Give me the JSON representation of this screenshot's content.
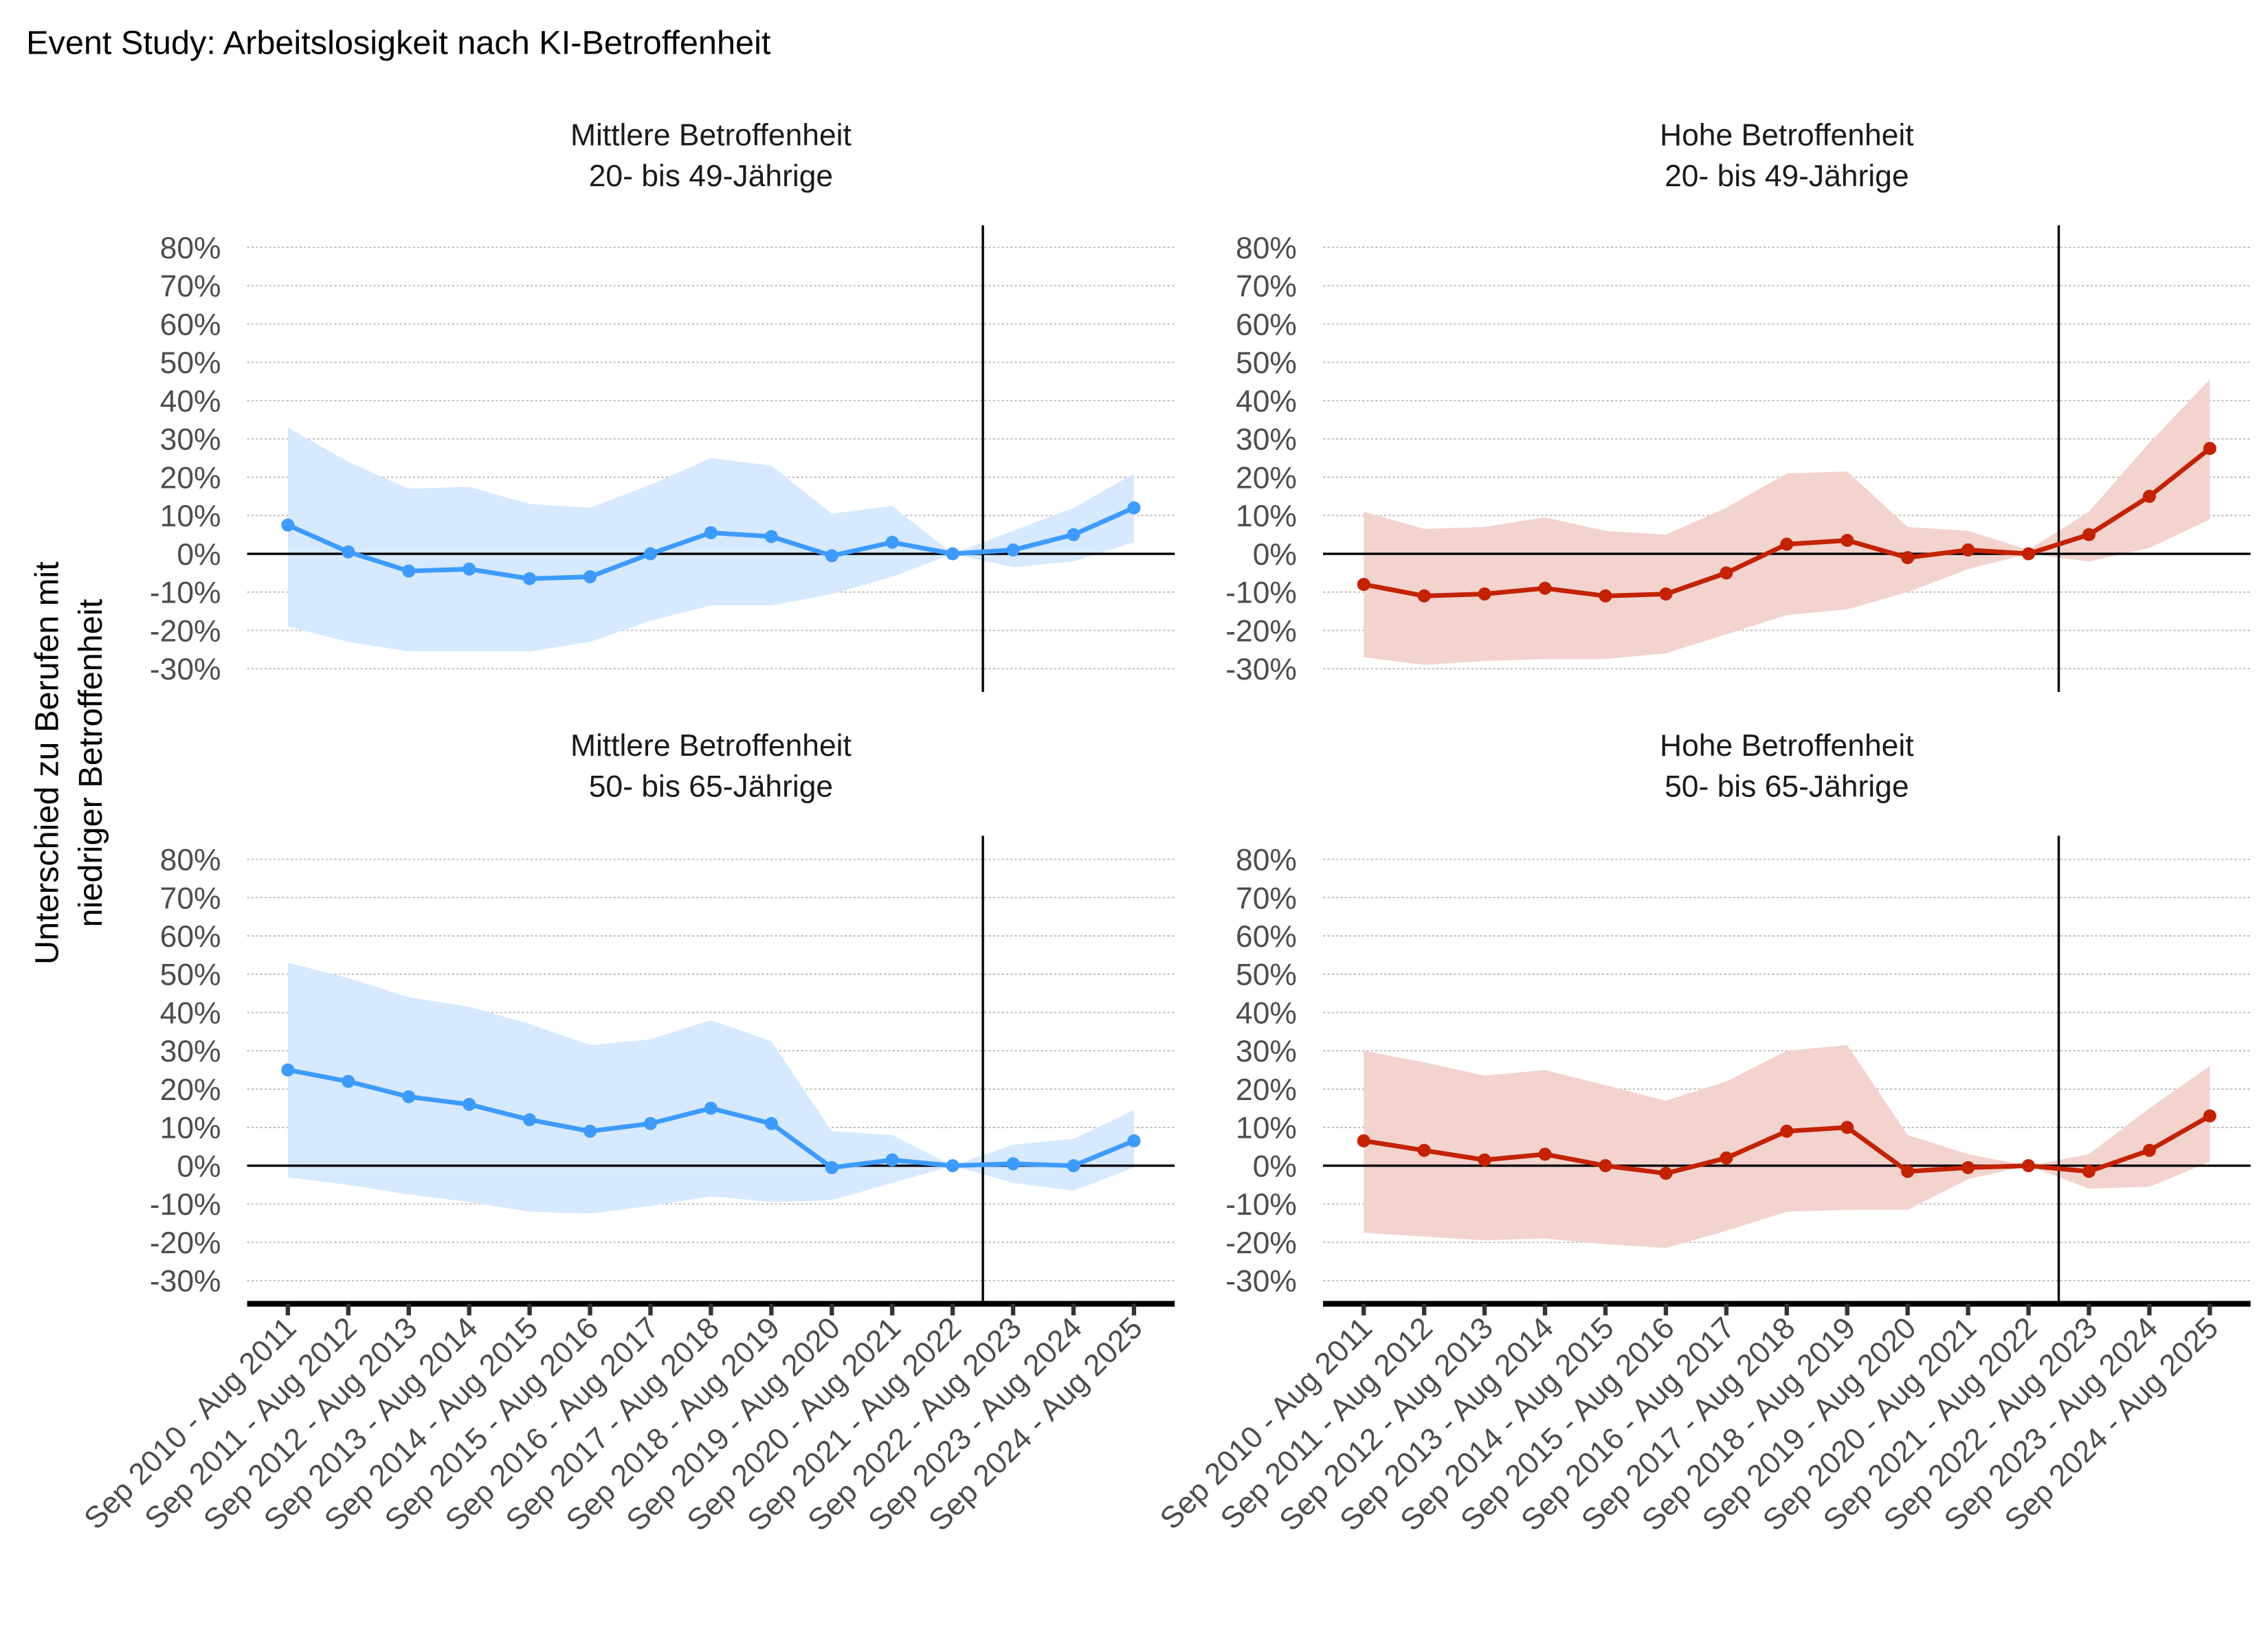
{
  "chart_data": {
    "type": "line",
    "title": "Event Study: Arbeitslosigkeit nach KI-Betroffenheit",
    "ylabel": [
      "Unterschied zu Berufen mit",
      "niedriger Betroffenheit"
    ],
    "xlabel": "",
    "categories": [
      "Sep 2010 - Aug 2011",
      "Sep 2011 - Aug 2012",
      "Sep 2012 - Aug 2013",
      "Sep 2013 - Aug 2014",
      "Sep 2014 - Aug 2015",
      "Sep 2015 - Aug 2016",
      "Sep 2016 - Aug 2017",
      "Sep 2017 - Aug 2018",
      "Sep 2018 - Aug 2019",
      "Sep 2019 - Aug 2020",
      "Sep 2020 - Aug 2021",
      "Sep 2021 - Aug 2022",
      "Sep 2022 - Aug 2023",
      "Sep 2023 - Aug 2024",
      "Sep 2024 - Aug 2025"
    ],
    "yticks": [
      "-30%",
      "-20%",
      "-10%",
      "0%",
      "10%",
      "20%",
      "30%",
      "40%",
      "50%",
      "60%",
      "70%",
      "80%"
    ],
    "ytick_values": [
      -30,
      -20,
      -10,
      0,
      10,
      20,
      30,
      40,
      50,
      60,
      70,
      80
    ],
    "ylim": [
      -33,
      86
    ],
    "grid": "horizontal dotted",
    "event_line_between": [
      "Sep 2021 - Aug 2022",
      "Sep 2022 - Aug 2023"
    ],
    "panels": [
      {
        "title": [
          "Mittlere Betroffenheit",
          "20- bis 49-Jährige"
        ],
        "color": "#3d9bff",
        "band_color": "#d6e9ff",
        "values": [
          7.5,
          0.5,
          -4.5,
          -4,
          -6.5,
          -6,
          0,
          5.5,
          4.5,
          -0.5,
          3,
          0,
          1,
          5,
          12
        ],
        "upper": [
          33,
          24,
          17,
          17.5,
          13,
          12,
          18,
          25,
          23,
          10.5,
          12.5,
          0,
          6,
          12,
          21
        ],
        "lower": [
          -19,
          -23,
          -25.5,
          -25.5,
          -25.5,
          -23,
          -17.5,
          -13.5,
          -13.5,
          -10.5,
          -6,
          0,
          -3.5,
          -2,
          3
        ]
      },
      {
        "title": [
          "Hohe Betroffenheit",
          "20- bis 49-Jährige"
        ],
        "color": "#c42200",
        "band_color": "#f2d3ce",
        "values": [
          -8,
          -11,
          -10.5,
          -9,
          -11,
          -10.5,
          -5,
          2.5,
          3.5,
          -1,
          1,
          0,
          5,
          15,
          27.5
        ],
        "upper": [
          11,
          6.5,
          7,
          9.5,
          6,
          5,
          12,
          21,
          21.5,
          7,
          6,
          1,
          11,
          29,
          45.5
        ],
        "lower": [
          -27,
          -29,
          -28,
          -27.5,
          -27.5,
          -26,
          -21,
          -16,
          -14.5,
          -10,
          -4,
          0,
          -2,
          1.5,
          9
        ]
      },
      {
        "title": [
          "Mittlere Betroffenheit",
          "50- bis 65-Jährige"
        ],
        "color": "#3d9bff",
        "band_color": "#d6e9ff",
        "values": [
          25,
          22,
          18,
          16,
          12,
          9,
          11,
          15,
          11,
          -0.5,
          1.5,
          0,
          0.5,
          0,
          6.5
        ],
        "upper": [
          53,
          49,
          44,
          41.5,
          37,
          31.5,
          33,
          38,
          32.5,
          9,
          8,
          0,
          5.5,
          7,
          14.5
        ],
        "lower": [
          -3,
          -5,
          -7.5,
          -9.5,
          -12,
          -12.5,
          -10.5,
          -8,
          -9.5,
          -9,
          -4.5,
          0,
          -4.5,
          -6.5,
          -0.5
        ]
      },
      {
        "title": [
          "Hohe Betroffenheit",
          "50- bis 65-Jährige"
        ],
        "color": "#c42200",
        "band_color": "#f2d3ce",
        "values": [
          6.5,
          4,
          1.5,
          3,
          0,
          -2,
          2,
          9,
          10,
          -1.5,
          -0.5,
          0,
          -1.5,
          4,
          13
        ],
        "upper": [
          30,
          27,
          23.5,
          25,
          21,
          17,
          22,
          30,
          31.5,
          8,
          3,
          0,
          3,
          15,
          26
        ],
        "lower": [
          -17.5,
          -18.5,
          -19.5,
          -19,
          -20.5,
          -21.5,
          -17,
          -12,
          -11.5,
          -11.5,
          -3.5,
          0,
          -6,
          -5.5,
          1
        ]
      }
    ]
  }
}
